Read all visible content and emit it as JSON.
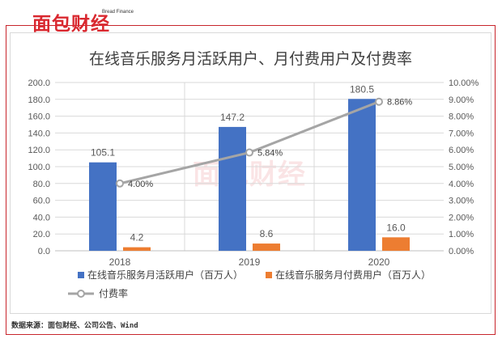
{
  "brand": {
    "logo_text": "面包财经",
    "logo_sub": "Bread Finance",
    "watermark_text": "面包财经"
  },
  "source": "数据来源：面包财经、公司公告、Wind",
  "chart_data": {
    "type": "bar",
    "title": "在线音乐服务月活跃用户、月付费用户及付费率",
    "categories": [
      "2018",
      "2019",
      "2020"
    ],
    "series": [
      {
        "name": "在线音乐服务月活跃用户（百万人）",
        "kind": "bar",
        "axis": "left",
        "color": "#4472c4",
        "values": [
          105.1,
          147.2,
          180.5
        ],
        "labels": [
          "105.1",
          "147.2",
          "180.5"
        ]
      },
      {
        "name": "在线音乐服务月付费用户（百万人）",
        "kind": "bar",
        "axis": "left",
        "color": "#ed7d31",
        "values": [
          4.2,
          8.6,
          16.0
        ],
        "labels": [
          "4.2",
          "8.6",
          "16.0"
        ]
      },
      {
        "name": "付费率",
        "kind": "line",
        "axis": "right",
        "color": "#a5a5a5",
        "values": [
          4.0,
          5.84,
          8.86
        ],
        "labels": [
          "4.00%",
          "5.84%",
          "8.86%"
        ]
      }
    ],
    "y_left": {
      "min": 0,
      "max": 200,
      "ticks": [
        "0.0",
        "20.0",
        "40.0",
        "60.0",
        "80.0",
        "100.0",
        "120.0",
        "140.0",
        "160.0",
        "180.0",
        "200.0"
      ]
    },
    "y_right": {
      "min": 0,
      "max": 10,
      "ticks": [
        "0.00%",
        "1.00%",
        "2.00%",
        "3.00%",
        "4.00%",
        "5.00%",
        "6.00%",
        "7.00%",
        "8.00%",
        "9.00%",
        "10.00%"
      ]
    },
    "grid": true,
    "legend_position": "bottom"
  }
}
